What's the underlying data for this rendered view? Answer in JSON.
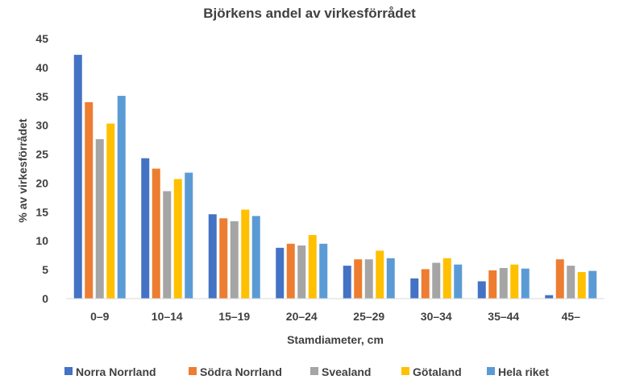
{
  "chart_data": {
    "type": "bar",
    "title": "Björkens andel av virkesförrådet",
    "xlabel": "Stamdiameter, cm",
    "ylabel": "% av virkesförrådet",
    "ylim": [
      0,
      45
    ],
    "yticks": [
      0,
      5,
      10,
      15,
      20,
      25,
      30,
      35,
      40,
      45
    ],
    "grid": false,
    "legend_position": "bottom",
    "categories": [
      "0–9",
      "10–14",
      "15–19",
      "20–24",
      "25–29",
      "30–34",
      "35–44",
      "45–"
    ],
    "series": [
      {
        "name": "Norra Norrland",
        "color": "#4472C4",
        "values": [
          42.2,
          24.3,
          14.6,
          8.8,
          5.7,
          3.5,
          3.0,
          0.6
        ]
      },
      {
        "name": "Södra Norrland",
        "color": "#ED7D31",
        "values": [
          34.0,
          22.5,
          13.9,
          9.5,
          6.8,
          5.1,
          4.9,
          6.8
        ]
      },
      {
        "name": "Svealand",
        "color": "#A5A5A5",
        "values": [
          27.6,
          18.6,
          13.4,
          9.2,
          6.8,
          6.2,
          5.3,
          5.7
        ]
      },
      {
        "name": "Götaland",
        "color": "#FFC000",
        "values": [
          30.3,
          20.7,
          15.4,
          11.0,
          8.3,
          7.0,
          5.9,
          4.6
        ]
      },
      {
        "name": "Hela riket",
        "color": "#5B9BD5",
        "values": [
          35.1,
          21.8,
          14.3,
          9.5,
          7.0,
          5.9,
          5.2,
          4.8
        ]
      }
    ]
  }
}
